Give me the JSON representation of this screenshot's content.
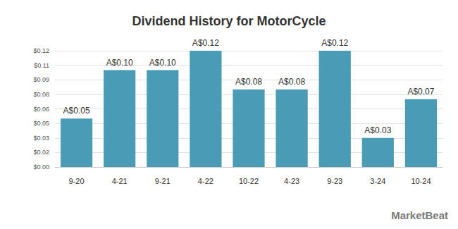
{
  "chart_data": {
    "type": "bar",
    "title": "Dividend History for MotorCycle",
    "categories": [
      "9-20",
      "4-21",
      "9-21",
      "4-22",
      "10-22",
      "4-23",
      "9-23",
      "3-24",
      "10-24"
    ],
    "values": [
      0.05,
      0.1,
      0.1,
      0.12,
      0.08,
      0.08,
      0.12,
      0.03,
      0.07
    ],
    "value_labels": [
      "A$0.05",
      "A$0.10",
      "A$0.10",
      "A$0.12",
      "A$0.08",
      "A$0.08",
      "A$0.12",
      "A$0.03",
      "A$0.07"
    ],
    "color": "#4a9cb6",
    "ylim": [
      0,
      0.12
    ],
    "yticks": [
      {
        "value": 0,
        "label": "$0.00"
      },
      {
        "value": 0.015,
        "label": "$0.02"
      },
      {
        "value": 0.03,
        "label": "$0.03"
      },
      {
        "value": 0.045,
        "label": "$0.05"
      },
      {
        "value": 0.06,
        "label": "$0.06"
      },
      {
        "value": 0.075,
        "label": "$0.08"
      },
      {
        "value": 0.09,
        "label": "$0.09"
      },
      {
        "value": 0.105,
        "label": "$0.11"
      },
      {
        "value": 0.12,
        "label": "$0.12"
      }
    ],
    "grid": true,
    "data_labels": true,
    "annotations": [
      "MarketBeat"
    ]
  }
}
